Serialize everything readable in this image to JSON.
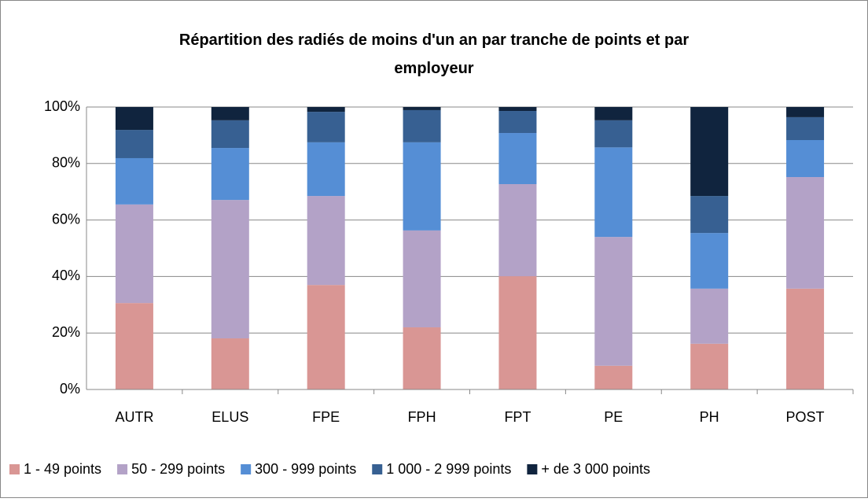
{
  "chart_data": {
    "type": "stacked_bar",
    "title": "Répartition des radiés de moins d'un an par tranche de points et par employeur",
    "categories": [
      "AUTR",
      "ELUS",
      "FPE",
      "FPH",
      "FPT",
      "PE",
      "PH",
      "POST"
    ],
    "series": [
      {
        "name": "1 - 49 points",
        "color": "#d99694",
        "values": [
          30.6,
          18.1,
          37.0,
          22.0,
          40.1,
          8.4,
          16.2,
          35.7
        ]
      },
      {
        "name": "50 - 299 points",
        "color": "#b3a2c7",
        "values": [
          34.9,
          49.0,
          31.5,
          34.3,
          32.6,
          45.6,
          19.5,
          39.5
        ]
      },
      {
        "name": "300 - 999 points",
        "color": "#558ed5",
        "values": [
          16.4,
          18.4,
          19.0,
          31.2,
          18.1,
          31.7,
          19.7,
          13.1
        ]
      },
      {
        "name": "1 000 - 2 999 points",
        "color": "#376092",
        "values": [
          10.0,
          9.8,
          10.8,
          11.4,
          7.8,
          9.6,
          13.1,
          8.1
        ]
      },
      {
        "name": "+ de 3 000 points",
        "color": "#10243e",
        "values": [
          8.1,
          4.7,
          1.7,
          1.1,
          1.4,
          4.7,
          31.5,
          3.6
        ]
      }
    ],
    "ylim": [
      0,
      100
    ],
    "yticks": [
      {
        "value": 0,
        "label": "0%"
      },
      {
        "value": 20,
        "label": "20%"
      },
      {
        "value": 40,
        "label": "40%"
      },
      {
        "value": 60,
        "label": "60%"
      },
      {
        "value": 80,
        "label": "80%"
      },
      {
        "value": 100,
        "label": "100%"
      }
    ],
    "grid": true,
    "legend": "bottom"
  }
}
